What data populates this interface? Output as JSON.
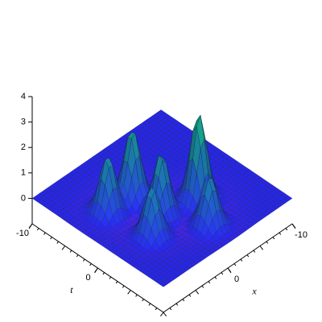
{
  "chart_data": {
    "type": "surface3d",
    "x_label": "x",
    "t_label": "t",
    "xlim": [
      10,
      -10
    ],
    "xticks": [
      0,
      -10
    ],
    "tlim": [
      -10,
      10
    ],
    "tticks": [
      -10,
      0
    ],
    "zlim": [
      -1,
      4
    ],
    "zticks": [
      0,
      1,
      2,
      3,
      4
    ],
    "peaks": [
      {
        "x": -2.8,
        "t": 2.8,
        "z": 3.5
      },
      {
        "x": 2,
        "t": -2.6,
        "z": 2.8
      },
      {
        "x": 1.6,
        "t": 1.4,
        "z": 2.5
      },
      {
        "x": 5.6,
        "t": -2.8,
        "z": 2.3
      },
      {
        "x": 4.8,
        "t": 3.2,
        "z": 2
      },
      {
        "x": -0.8,
        "t": 6.4,
        "z": 2
      }
    ],
    "colors": [
      "#2a2aff",
      "#10c878"
    ]
  }
}
